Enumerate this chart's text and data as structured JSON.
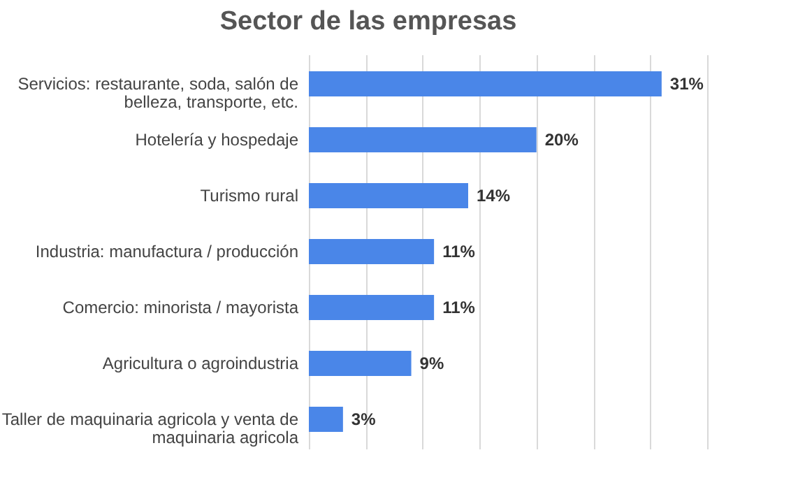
{
  "chart_data": {
    "type": "bar",
    "orientation": "horizontal",
    "title": "Sector de las empresas",
    "categories": [
      "Servicios: restaurante, soda, salón de belleza, transporte, etc.",
      "Hotelería y hospedaje",
      "Turismo rural",
      "Industria: manufactura / producción",
      "Comercio: minorista / mayorista",
      "Agricultura o agroindustria",
      "Taller de maquinaria agricola y venta de maquinaria agricola"
    ],
    "values": [
      31,
      20,
      14,
      11,
      11,
      9,
      3
    ],
    "value_labels": [
      "31%",
      "20%",
      "14%",
      "11%",
      "11%",
      "9%",
      "3%"
    ],
    "color": "#4a86e8",
    "xlim": [
      0,
      35
    ],
    "xticks": [
      {
        "value": 0,
        "label": null
      },
      {
        "value": 5,
        "label": null
      },
      {
        "value": 10,
        "label": null
      },
      {
        "value": 15,
        "label": null
      },
      {
        "value": 20,
        "label": null
      },
      {
        "value": 25,
        "label": null
      },
      {
        "value": 30,
        "label": null
      },
      {
        "value": 35,
        "label": null
      }
    ],
    "grid": "x",
    "tick_labels": "y"
  }
}
